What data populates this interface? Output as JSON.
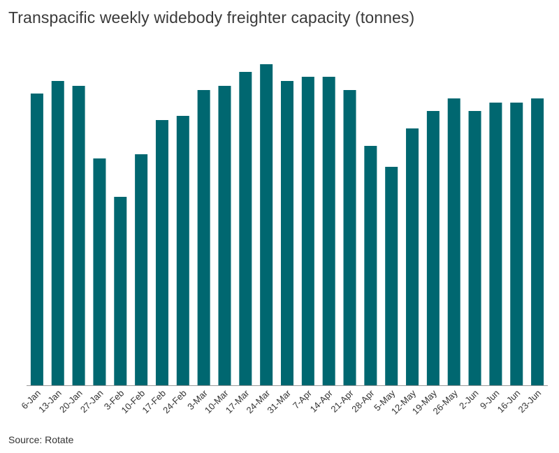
{
  "chart_data": {
    "type": "bar",
    "title": "Transpacific weekly widebody freighter capacity (tonnes)",
    "source": "Source: Rotate",
    "xlabel": "",
    "ylabel": "",
    "categories": [
      "6-Jan",
      "13-Jan",
      "20-Jan",
      "27-Jan",
      "3-Feb",
      "10-Feb",
      "17-Feb",
      "24-Feb",
      "3-Mar",
      "10-Mar",
      "17-Mar",
      "24-Mar",
      "31-Mar",
      "7-Apr",
      "14-Apr",
      "21-Apr",
      "28-Apr",
      "5-May",
      "12-May",
      "19-May",
      "26-May",
      "2-Jun",
      "9-Jun",
      "16-Jun",
      "23-Jun"
    ],
    "values": [
      418,
      436,
      429,
      325,
      270,
      331,
      380,
      386,
      423,
      429,
      449,
      460,
      436,
      442,
      442,
      423,
      343,
      313,
      368,
      393,
      411,
      393,
      405,
      405,
      411
    ],
    "ylim": [
      0,
      552
    ],
    "grid": false,
    "bar_color": "#006770",
    "axis_color": "#999999"
  }
}
